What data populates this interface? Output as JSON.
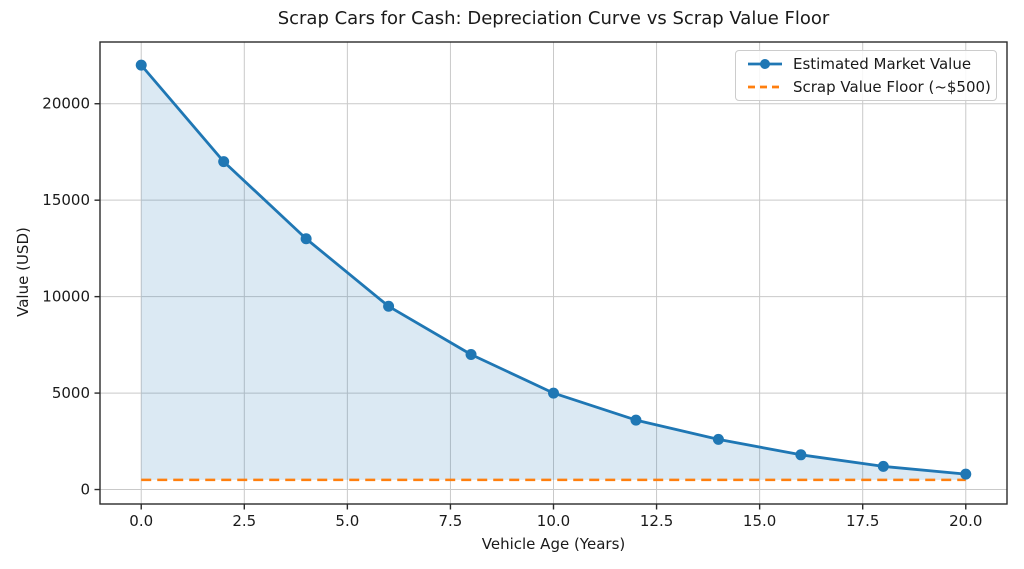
{
  "figure": {
    "background": "#ffffff",
    "text_color": "#1a1a1a",
    "grid_color": "#c9c9c9",
    "spine_color": "#2b2b2b"
  },
  "chart_data": {
    "type": "line",
    "title": "Scrap Cars for Cash: Depreciation Curve vs Scrap Value Floor",
    "xlabel": "Vehicle Age (Years)",
    "ylabel": "Value (USD)",
    "xlim": [
      -1,
      21
    ],
    "ylim": [
      -750,
      23200
    ],
    "xticks": [
      0,
      2.5,
      5,
      7.5,
      10,
      12.5,
      15,
      17.5,
      20
    ],
    "xtick_labels": [
      "0.0",
      "2.5",
      "5.0",
      "7.5",
      "10.0",
      "12.5",
      "15.0",
      "17.5",
      "20.0"
    ],
    "yticks": [
      0,
      5000,
      10000,
      15000,
      20000
    ],
    "ytick_labels": [
      "0",
      "5000",
      "10000",
      "15000",
      "20000"
    ],
    "grid": true,
    "legend_position": "upper-right",
    "series": [
      {
        "name": "Estimated Market Value",
        "type": "line-with-markers",
        "color": "#1f77b4",
        "marker": "circle",
        "fill_color": "rgba(31,119,180,0.16)",
        "fill_to": 500,
        "x": [
          0,
          2,
          4,
          6,
          8,
          10,
          12,
          14,
          16,
          18,
          20
        ],
        "y": [
          22000,
          17000,
          13000,
          9500,
          7000,
          5000,
          3600,
          2600,
          1800,
          1200,
          800
        ]
      },
      {
        "name": "Scrap Value Floor (~$500)",
        "type": "horizontal-dashed-line",
        "color": "#ff7f0e",
        "y_value": 500,
        "x_span": [
          0,
          20
        ]
      }
    ]
  }
}
